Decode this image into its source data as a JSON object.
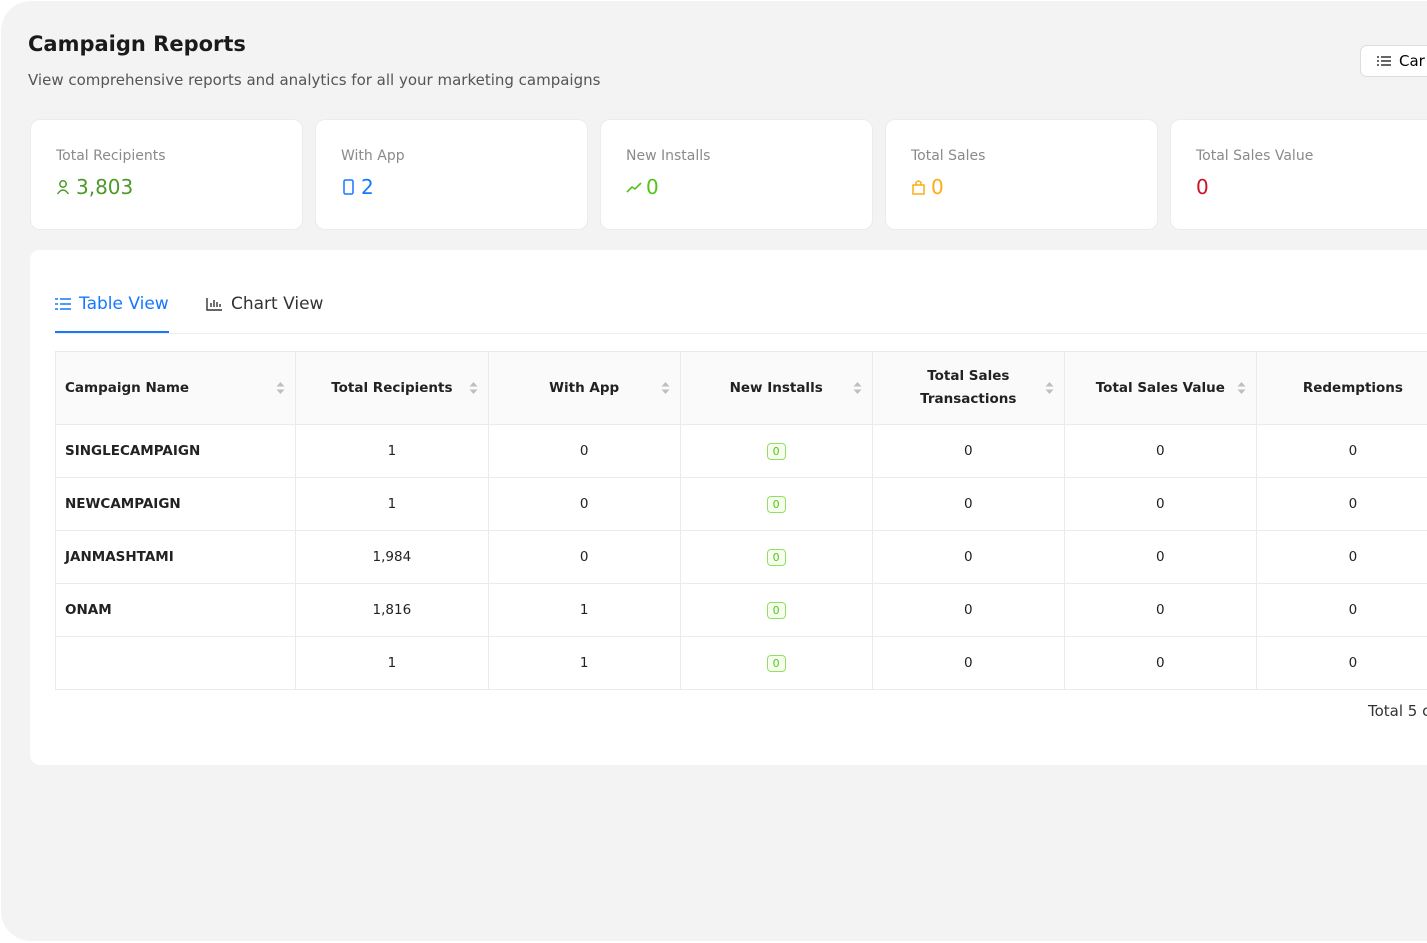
{
  "header": {
    "title": "Campaign Reports",
    "subtitle": "View comprehensive reports and analytics for all your marketing campaigns",
    "button": "Car"
  },
  "stats": [
    {
      "label": "Total Recipients",
      "value": "3,803"
    },
    {
      "label": "With App",
      "value": "2"
    },
    {
      "label": "New Installs",
      "value": "0"
    },
    {
      "label": "Total Sales",
      "value": "0"
    },
    {
      "label": "Total Sales Value",
      "value": "0"
    }
  ],
  "tabs": [
    "Table View",
    "Chart View"
  ],
  "table": {
    "columns": [
      "Campaign Name",
      "Total Recipients",
      "With App",
      "New Installs",
      "Total Sales Transactions",
      "Total Sales Value",
      "Redemptions"
    ],
    "rows": [
      [
        "SINGLECAMPAIGN",
        "1",
        "0",
        "0",
        "0",
        "0",
        "0"
      ],
      [
        "NEWCAMPAIGN",
        "1",
        "0",
        "0",
        "0",
        "0",
        "0"
      ],
      [
        "JANMASHTAMI",
        "1,984",
        "0",
        "0",
        "0",
        "0",
        "0"
      ],
      [
        "ONAM",
        "1,816",
        "1",
        "0",
        "0",
        "0",
        "0"
      ],
      [
        null,
        "1",
        "1",
        "0",
        "0",
        "0",
        "0"
      ]
    ]
  },
  "footer": "Total 5 c"
}
